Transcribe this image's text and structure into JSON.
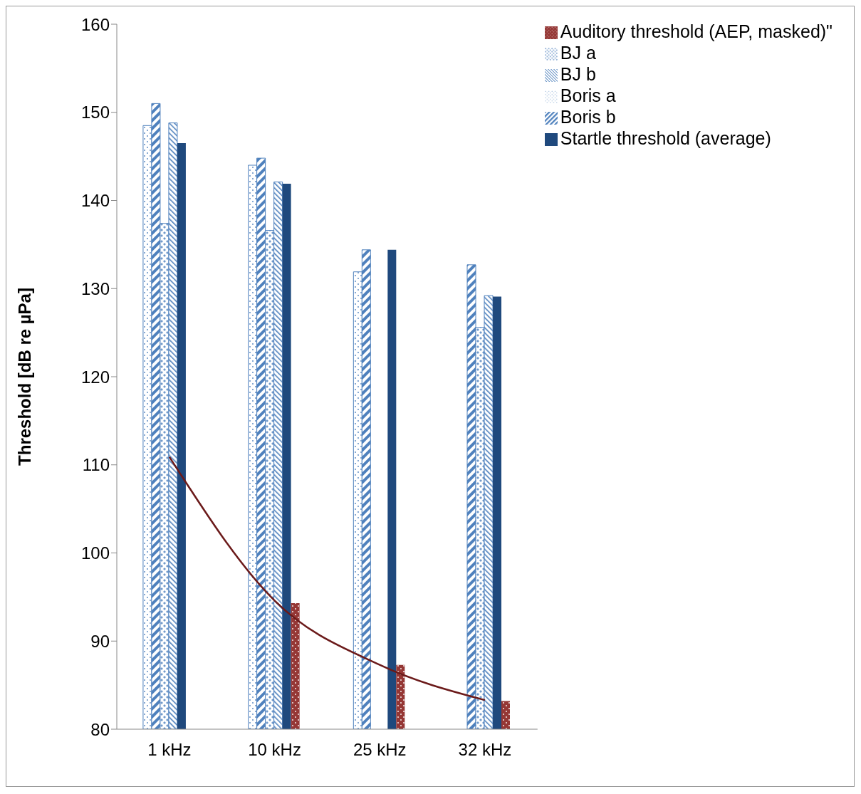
{
  "chart_data": {
    "type": "bar",
    "ylabel": "Threshold [dB re µPa]",
    "categories": [
      "1 kHz",
      "10 kHz",
      "25 kHz",
      "32 kHz"
    ],
    "series": [
      {
        "name": "Boris a",
        "color": "#4f81bd",
        "values": [
          148.5,
          144.0,
          131.9,
          null
        ]
      },
      {
        "name": "Boris b",
        "color": "#4f81bd",
        "values": [
          151.0,
          144.8,
          134.4,
          132.7
        ]
      },
      {
        "name": "BJ a",
        "color": "#4f81bd",
        "values": [
          137.4,
          136.6,
          80,
          125.6
        ]
      },
      {
        "name": "BJ b",
        "color": "#4f81bd",
        "values": [
          148.8,
          142.1,
          null,
          129.2
        ]
      },
      {
        "name": "Startle threshold (average)",
        "color": "#1f497d",
        "values": [
          146.5,
          141.9,
          134.4,
          129.1
        ]
      },
      {
        "name": "Auditory threshold (AEP, masked)\"",
        "color": "#953735",
        "values": [
          null,
          94.3,
          87.3,
          83.2
        ]
      },
      {
        "type": "line",
        "color": "#6b1a1a",
        "values": [
          110.9,
          94.6,
          87.3,
          83.3
        ]
      }
    ],
    "ylim": [
      80,
      160
    ],
    "yticks": [
      80,
      90,
      100,
      110,
      120,
      130,
      140,
      150,
      160
    ],
    "grid": false,
    "legend": "top right",
    "marker": "none",
    "line_style": "solid"
  }
}
